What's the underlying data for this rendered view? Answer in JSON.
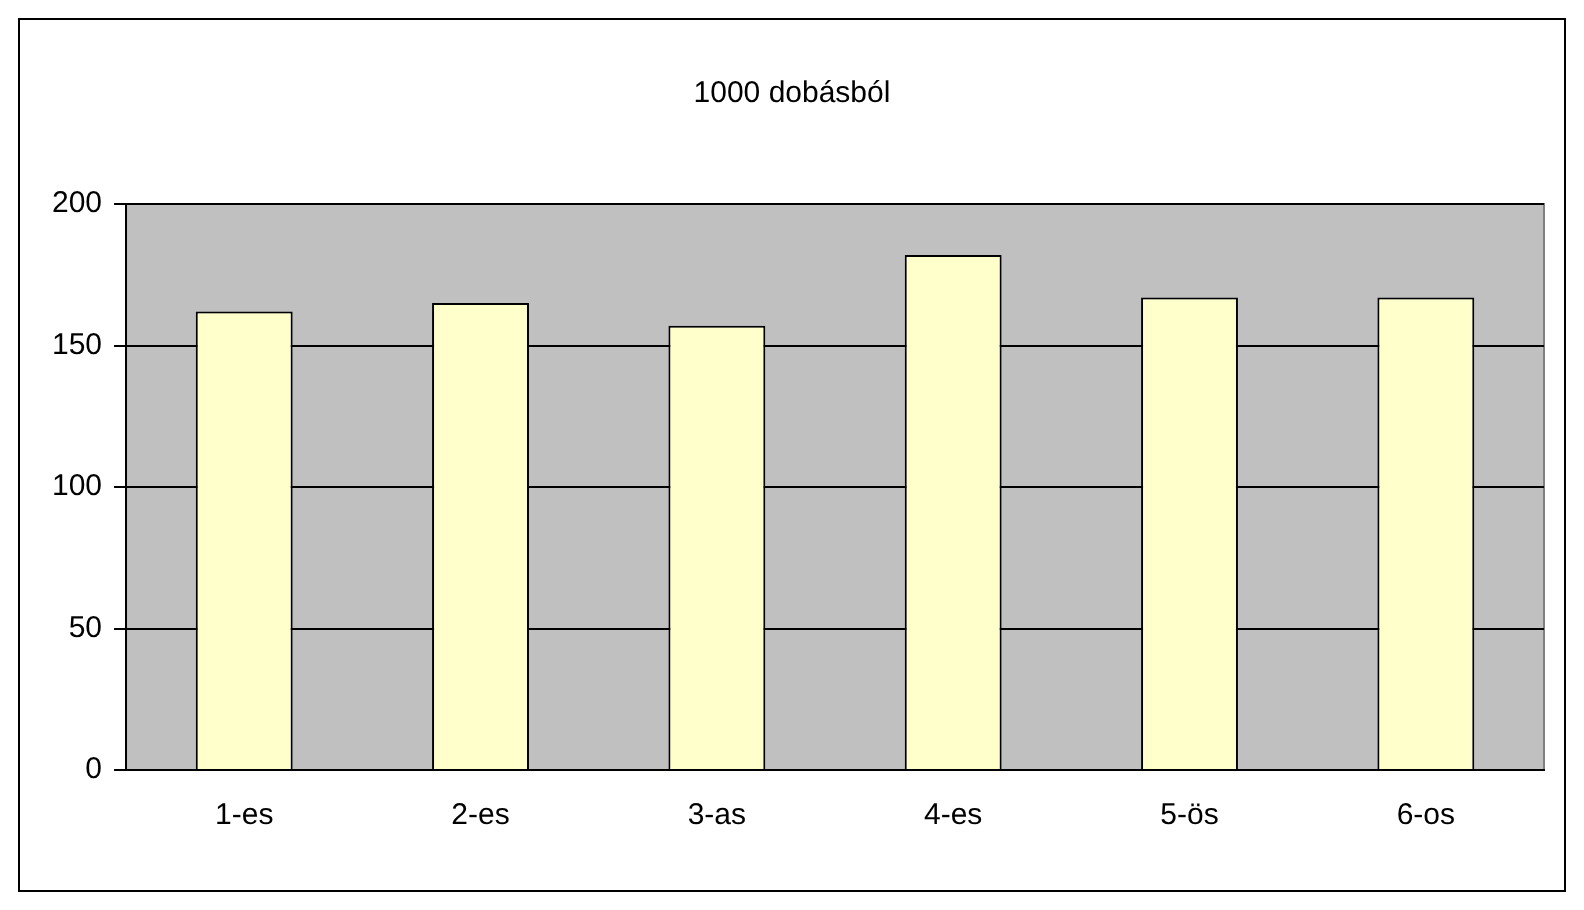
{
  "chart_data": {
    "type": "bar",
    "title": "1000 dobásból",
    "categories": [
      "1-es",
      "2-es",
      "3-as",
      "4-es",
      "5-ös",
      "6-os"
    ],
    "values": [
      162,
      165,
      157,
      182,
      167,
      167
    ],
    "color": "#ffffcc",
    "ylim": [
      0,
      200
    ],
    "yticks": [
      0,
      50,
      100,
      150,
      200
    ],
    "grid": "y",
    "legend": false
  }
}
